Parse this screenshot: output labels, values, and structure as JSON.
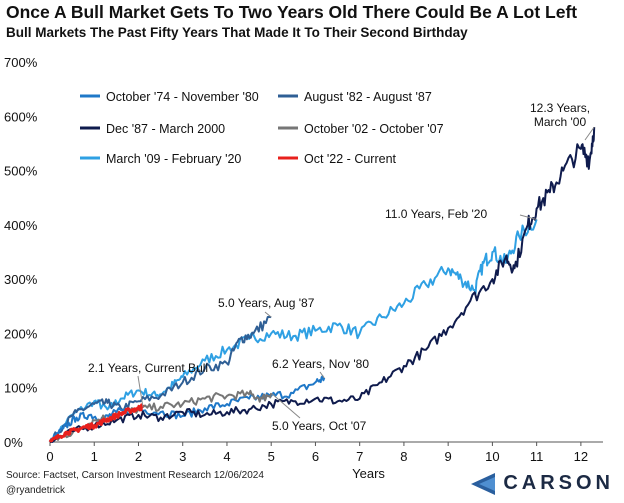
{
  "title": "Once A Bull Market Gets To Two Years Old There Could Be A Lot Left",
  "subtitle": "Bull Markets The Past Fifty Years That Made It To Their Second Birthday",
  "footer": {
    "source": "Source: Factset, Carson Investment Research 12/06/2024",
    "handle": "@ryandetrick"
  },
  "brand": {
    "name": "CARSON",
    "icon": "carson-triangle-logo"
  },
  "colors": {
    "oct74": "#1f78c8",
    "aug82": "#2f5f95",
    "dec87": "#0f1b4d",
    "oct02": "#767676",
    "mar09": "#2fa0e3",
    "oct22": "#e8201c",
    "orange_accent": "#f0a048"
  },
  "chart_data": {
    "type": "line",
    "xlabel": "Years",
    "ylabel": "",
    "xlim": [
      0,
      12.5
    ],
    "ylim": [
      0,
      700
    ],
    "x_ticks": [
      0,
      1,
      2,
      3,
      4,
      5,
      6,
      7,
      8,
      9,
      10,
      11,
      12
    ],
    "y_ticks": [
      "0%",
      "100%",
      "200%",
      "300%",
      "400%",
      "500%",
      "600%",
      "700%"
    ],
    "grid": false,
    "legend_position": "top-left",
    "series": [
      {
        "name": "October '74 - November '80",
        "color_key": "oct74",
        "points": [
          [
            0,
            0
          ],
          [
            0.3,
            25
          ],
          [
            0.6,
            45
          ],
          [
            0.9,
            50
          ],
          [
            1.2,
            42
          ],
          [
            1.5,
            55
          ],
          [
            2.0,
            60
          ],
          [
            2.5,
            55
          ],
          [
            3.0,
            48
          ],
          [
            3.5,
            62
          ],
          [
            4.0,
            70
          ],
          [
            4.5,
            80
          ],
          [
            5.0,
            85
          ],
          [
            5.5,
            90
          ],
          [
            6.0,
            110
          ],
          [
            6.2,
            118
          ]
        ]
      },
      {
        "name": "August '82 - August '87",
        "color_key": "aug82",
        "points": [
          [
            0,
            0
          ],
          [
            0.3,
            30
          ],
          [
            0.6,
            55
          ],
          [
            1.0,
            70
          ],
          [
            1.3,
            72
          ],
          [
            1.6,
            62
          ],
          [
            2.0,
            75
          ],
          [
            2.5,
            85
          ],
          [
            3.0,
            110
          ],
          [
            3.5,
            135
          ],
          [
            4.0,
            145
          ],
          [
            4.3,
            190
          ],
          [
            4.6,
            200
          ],
          [
            5.0,
            230
          ]
        ]
      },
      {
        "name": "Dec '87 - March 2000",
        "color_key": "dec87",
        "points": [
          [
            0,
            0
          ],
          [
            0.5,
            20
          ],
          [
            1.0,
            30
          ],
          [
            1.5,
            40
          ],
          [
            2.0,
            50
          ],
          [
            2.5,
            45
          ],
          [
            3.0,
            55
          ],
          [
            3.5,
            50
          ],
          [
            4.0,
            55
          ],
          [
            4.5,
            60
          ],
          [
            5.0,
            70
          ],
          [
            5.5,
            75
          ],
          [
            6.0,
            80
          ],
          [
            6.5,
            75
          ],
          [
            7.0,
            80
          ],
          [
            7.5,
            110
          ],
          [
            8.0,
            140
          ],
          [
            8.5,
            170
          ],
          [
            9.0,
            210
          ],
          [
            9.5,
            260
          ],
          [
            10.0,
            300
          ],
          [
            10.3,
            340
          ],
          [
            10.5,
            320
          ],
          [
            10.8,
            400
          ],
          [
            11.0,
            430
          ],
          [
            11.3,
            460
          ],
          [
            11.6,
            500
          ],
          [
            12.0,
            540
          ],
          [
            12.2,
            520
          ],
          [
            12.3,
            580
          ]
        ]
      },
      {
        "name": "October '02 - October '07",
        "color_key": "oct02",
        "points": [
          [
            0,
            0
          ],
          [
            0.3,
            10
          ],
          [
            0.7,
            25
          ],
          [
            1.0,
            40
          ],
          [
            1.5,
            50
          ],
          [
            2.0,
            60
          ],
          [
            2.5,
            65
          ],
          [
            3.0,
            70
          ],
          [
            3.5,
            80
          ],
          [
            4.0,
            85
          ],
          [
            4.5,
            88
          ],
          [
            4.8,
            80
          ],
          [
            5.0,
            90
          ]
        ]
      },
      {
        "name": "March '09 - February '20",
        "color_key": "mar09",
        "points": [
          [
            0,
            0
          ],
          [
            0.5,
            50
          ],
          [
            1.0,
            75
          ],
          [
            1.3,
            60
          ],
          [
            1.6,
            80
          ],
          [
            2.0,
            95
          ],
          [
            2.4,
            85
          ],
          [
            2.7,
            100
          ],
          [
            3.0,
            120
          ],
          [
            3.5,
            150
          ],
          [
            4.0,
            170
          ],
          [
            4.5,
            190
          ],
          [
            5.0,
            200
          ],
          [
            5.5,
            195
          ],
          [
            6.0,
            205
          ],
          [
            6.5,
            215
          ],
          [
            7.0,
            200
          ],
          [
            7.5,
            230
          ],
          [
            8.0,
            255
          ],
          [
            8.5,
            290
          ],
          [
            9.0,
            320
          ],
          [
            9.3,
            300
          ],
          [
            9.6,
            280
          ],
          [
            9.8,
            330
          ],
          [
            10.0,
            350
          ],
          [
            10.3,
            330
          ],
          [
            10.6,
            380
          ],
          [
            11.0,
            410
          ]
        ]
      },
      {
        "name": "Oct '22 - Current",
        "color_key": "oct22",
        "points": [
          [
            0,
            0
          ],
          [
            0.2,
            10
          ],
          [
            0.4,
            18
          ],
          [
            0.6,
            22
          ],
          [
            0.8,
            28
          ],
          [
            1.0,
            30
          ],
          [
            1.2,
            38
          ],
          [
            1.4,
            45
          ],
          [
            1.6,
            52
          ],
          [
            1.8,
            58
          ],
          [
            2.0,
            62
          ],
          [
            2.1,
            65
          ]
        ]
      }
    ],
    "annotations": [
      {
        "text": "12.3 Years,",
        "text2": "March '00",
        "x": 12.3,
        "y": 580
      },
      {
        "text": "11.0 Years, Feb '20",
        "x": 11.0,
        "y": 410
      },
      {
        "text": "5.0 Years, Aug '87",
        "x": 5.0,
        "y": 230
      },
      {
        "text": "6.2 Years, Nov '80",
        "x": 6.2,
        "y": 118
      },
      {
        "text": "2.1 Years, Current Bull",
        "x": 2.1,
        "y": 65
      },
      {
        "text": "5.0 Years, Oct '07",
        "x": 5.0,
        "y": 90
      }
    ]
  }
}
